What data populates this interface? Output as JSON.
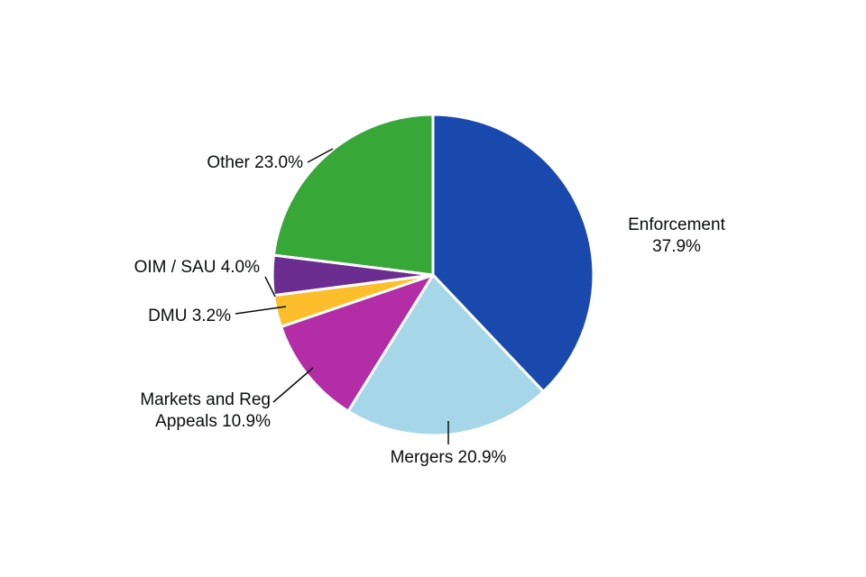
{
  "chart_data": {
    "type": "pie",
    "title": "",
    "direction": "clockwise",
    "start_position": "top",
    "background": "#ffffff",
    "slice_border_color": "#ffffff",
    "text_color": "#0b0c0c",
    "segments": [
      {
        "label": "Enforcement",
        "value": 37.9,
        "color": "#1a49ae",
        "display": [
          "Enforcement",
          "37.9%"
        ]
      },
      {
        "label": "Mergers",
        "value": 20.9,
        "color": "#a6d7e8",
        "display": [
          "Mergers 20.9%"
        ]
      },
      {
        "label": "Markets and Reg Appeals",
        "value": 10.9,
        "color": "#b32ea6",
        "display": [
          "Markets and Reg",
          "Appeals 10.9%"
        ]
      },
      {
        "label": "DMU",
        "value": 3.2,
        "color": "#fcbf2b",
        "display": [
          "DMU 3.2%"
        ]
      },
      {
        "label": "OIM / SAU",
        "value": 4.0,
        "color": "#6c2d91",
        "display": [
          "OIM / SAU 4.0%"
        ]
      },
      {
        "label": "Other",
        "value": 23.0,
        "color": "#37a837",
        "display": [
          "Other 23.0%"
        ]
      }
    ]
  }
}
